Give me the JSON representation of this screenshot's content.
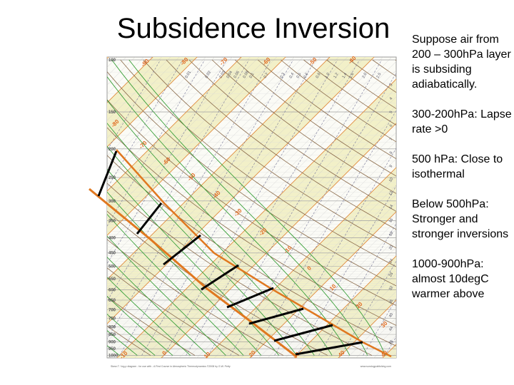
{
  "slide": {
    "title": "Subsidence Inversion",
    "notes": [
      "Suppose air from 200 – 300hPa layer is subsiding adiabatically.",
      "300-200hPa: Lapse rate >0",
      "500 hPa: Close to isothermal",
      "Below 500hPa: Stronger and stronger inversions",
      "1000-900hPa: almost 10degC warmer above"
    ]
  },
  "diagram": {
    "pressure_labels": [
      "100",
      "150",
      "200",
      "250",
      "300",
      "350",
      "400",
      "450",
      "500",
      "550",
      "600",
      "650",
      "700",
      "750",
      "800",
      "850",
      "900",
      "950",
      "1000"
    ],
    "temperature_labels": [
      "-90",
      "-80",
      "-70",
      "-60",
      "-50",
      "-40",
      "-80",
      "-70",
      "-60",
      "-50",
      "-40",
      "-30",
      "-20",
      "-10",
      "0",
      "10",
      "20",
      "30",
      "-10",
      "0",
      "10",
      "20",
      "30",
      "40",
      "40"
    ],
    "mixing_ratio_labels_top": [
      "0.01",
      "0.02",
      "0.03",
      "0.04",
      "0.06",
      "0.08",
      "0.1",
      "0.2",
      "0.3",
      "0.4",
      "0.5",
      "0.6",
      "0.8",
      "1.0",
      "1.2",
      "1.4",
      "1.6",
      "2.0",
      "2.5"
    ],
    "mixing_ratio_labels_right": [
      "3",
      "4",
      "5",
      "6",
      "7",
      "8",
      "9",
      "10",
      "12",
      "14",
      "16",
      "18",
      "20",
      "24",
      "28",
      "32",
      "36",
      "40",
      "44",
      "48"
    ],
    "footer_left": "Skew-T / log-p diagram - for use with - A First Course in Atmospheric Thermodynamics     ©2008 by G.W. Petty",
    "footer_right": "www.sundogpublishing.com",
    "colors": {
      "isotherm": "#e08a3c",
      "adiabat": "#8a6a4a",
      "moist": "#3aa03a",
      "profile": "#e07820",
      "arrow": "#000000",
      "band": "#f2f0c8"
    }
  }
}
